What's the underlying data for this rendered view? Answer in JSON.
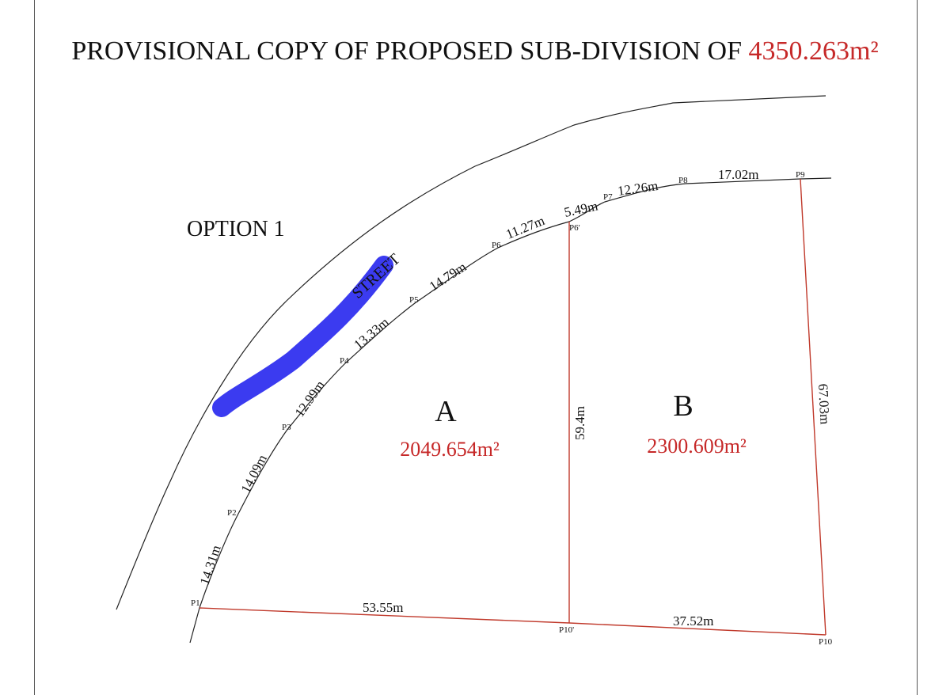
{
  "title": {
    "text": "PROVISIONAL COPY OF PROPOSED SUB-DIVISION OF",
    "area": "4350.263m²"
  },
  "option_label": "OPTION 1",
  "street_label": "STREET",
  "colors": {
    "boundary": "#c0392b",
    "area_text": "#c62828",
    "road": "#222222",
    "highlight": "#3b3bf0"
  },
  "plots": [
    {
      "id": "A",
      "area": "2049.654m²"
    },
    {
      "id": "B",
      "area": "2300.609m²"
    }
  ],
  "points": [
    "P1",
    "P2",
    "P3",
    "P4",
    "P5",
    "P6",
    "P6'",
    "P7",
    "P8",
    "P9",
    "P10'",
    "P10"
  ],
  "segments": [
    {
      "id": "p1-p2",
      "length": "14.31m"
    },
    {
      "id": "p2-p3",
      "length": "14.09m"
    },
    {
      "id": "p3-p4",
      "length": "12.99m"
    },
    {
      "id": "p4-p5",
      "length": "13.33m"
    },
    {
      "id": "p5-p6",
      "length": "14.79m"
    },
    {
      "id": "p6-p6p",
      "length": "11.27m"
    },
    {
      "id": "p6p-p7",
      "length": "5.49m"
    },
    {
      "id": "p7-p8",
      "length": "12.26m"
    },
    {
      "id": "p8-p9",
      "length": "17.02m"
    },
    {
      "id": "p9-p10",
      "length": "67.03m"
    },
    {
      "id": "p1-p10p",
      "length": "53.55m"
    },
    {
      "id": "p10p-p10",
      "length": "37.52m"
    },
    {
      "id": "p6p-p10p",
      "length": "59.4m"
    }
  ]
}
